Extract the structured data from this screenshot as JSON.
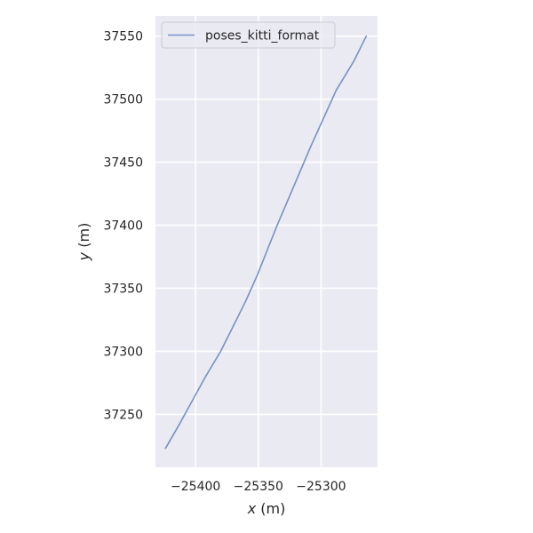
{
  "chart_data": {
    "type": "line",
    "xlabel_var": "x",
    "xlabel_unit": " (m)",
    "ylabel_var": "y",
    "ylabel_unit": " (m)",
    "xlim": [
      -25432,
      -25255
    ],
    "ylim": [
      37208,
      37566
    ],
    "x_ticks": [
      -25400,
      -25350,
      -25300
    ],
    "x_tick_labels": [
      "−25400",
      "−25350",
      "−25300"
    ],
    "y_ticks": [
      37250,
      37300,
      37350,
      37400,
      37450,
      37500,
      37550
    ],
    "y_tick_labels": [
      "37250",
      "37300",
      "37350",
      "37400",
      "37450",
      "37500",
      "37550"
    ],
    "grid": true,
    "legend_position": "upper-left",
    "series": [
      {
        "name": "poses_kitti_format",
        "color": "#7692c5",
        "x": [
          -25424,
          -25413,
          -25402,
          -25392,
          -25380,
          -25370,
          -25360,
          -25351,
          -25343,
          -25335,
          -25326,
          -25317,
          -25308,
          -25298,
          -25288,
          -25274,
          -25264
        ],
        "y": [
          37223,
          37242,
          37262,
          37280,
          37300,
          37320,
          37340,
          37360,
          37380,
          37400,
          37421,
          37442,
          37463,
          37485,
          37507,
          37530,
          37550
        ]
      }
    ]
  }
}
